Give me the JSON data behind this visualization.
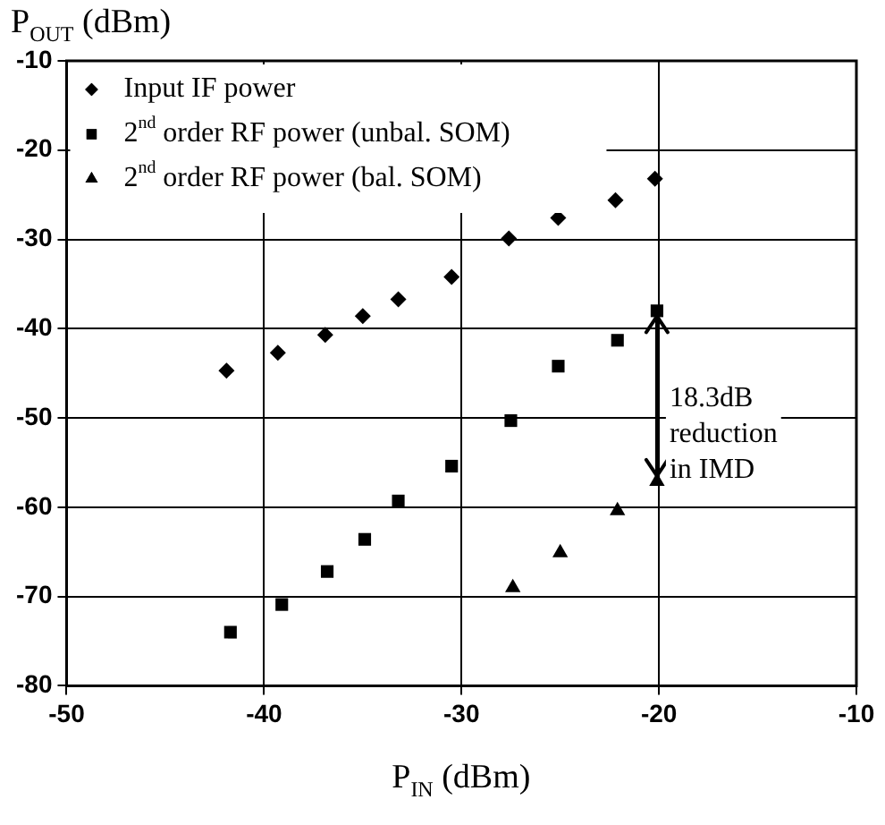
{
  "chart_data": {
    "type": "scatter",
    "xlabel": "P$_{IN}$ (dBm)",
    "ylabel": "P$_{OUT}$ (dBm)",
    "xlim": [
      -50,
      -10
    ],
    "xticks": [
      -50,
      -40,
      -30,
      -20,
      -10
    ],
    "ylim": [
      -80,
      -10
    ],
    "yticks": [
      -80,
      -70,
      -60,
      -50,
      -40,
      -30,
      -20,
      -10
    ],
    "grid": true,
    "legend": "top left",
    "series": [
      {
        "name": "Input IF power",
        "color": "#000000",
        "marker": "diamond",
        "x": [
          -41.9,
          -39.3,
          -36.9,
          -35.0,
          -33.2,
          -30.5,
          -27.6,
          -25.1,
          -22.2,
          -20.2
        ],
        "values": [
          -44.7,
          -42.7,
          -40.7,
          -38.6,
          -36.7,
          -34.2,
          -29.9,
          -27.6,
          -25.6,
          -23.2
        ]
      },
      {
        "name": "2$^{nd}$ order RF power (unbal. SOM)",
        "color": "#000000",
        "marker": "square",
        "x": [
          -41.7,
          -39.1,
          -36.8,
          -34.9,
          -33.2,
          -30.5,
          -27.5,
          -25.1,
          -22.1,
          -20.1
        ],
        "values": [
          -74.0,
          -70.9,
          -67.2,
          -63.6,
          -59.3,
          -55.4,
          -50.3,
          -44.2,
          -41.3,
          -38.0
        ]
      },
      {
        "name": "2$^{nd}$ order RF power (bal. SOM)",
        "color": "#000000",
        "marker": "triangle",
        "x": [
          -27.4,
          -25.0,
          -22.1,
          -20.1
        ],
        "values": [
          -69.0,
          -65.1,
          -60.4,
          -57.1
        ]
      }
    ],
    "annotations": [
      {
        "text": "18.3dB\nreduction\nin IMD",
        "x": -20.1,
        "y": -57.1
      }
    ]
  }
}
